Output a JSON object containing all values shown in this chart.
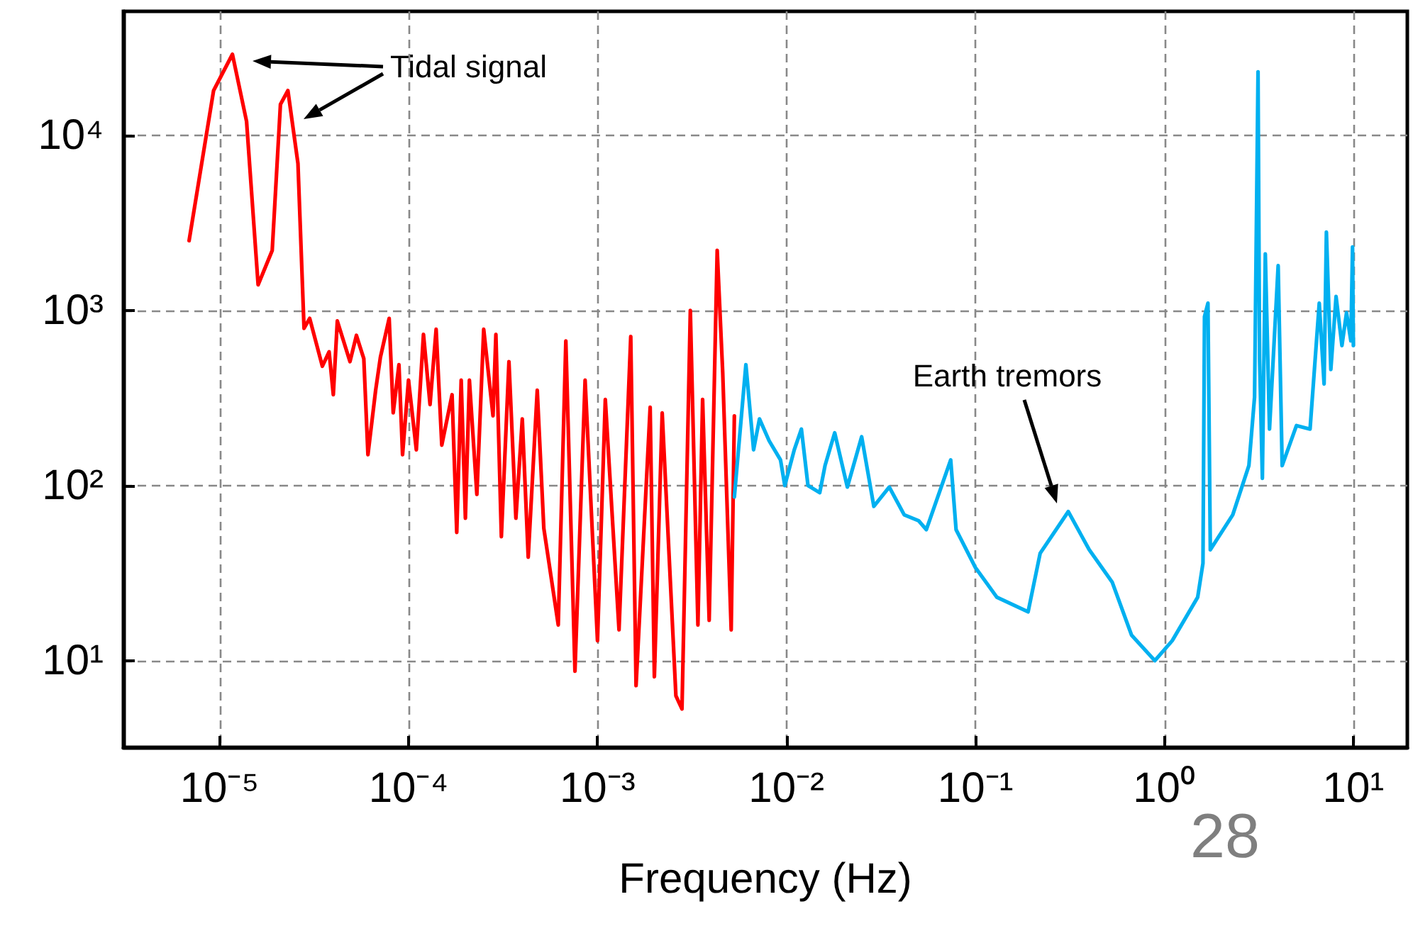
{
  "chart_data": {
    "type": "line",
    "xlabel": "Frequency (Hz)",
    "log": "xy",
    "grid": true,
    "marker": "none",
    "line_style": "solid",
    "xlim": [
      3.1e-06,
      19.3
    ],
    "ylim": [
      3.2,
      51000
    ],
    "xticks": [
      {
        "value": 1e-05,
        "label": "10⁻⁵"
      },
      {
        "value": 0.0001,
        "label": "10⁻⁴"
      },
      {
        "value": 0.001,
        "label": "10⁻³"
      },
      {
        "value": 0.01,
        "label": "10⁻²"
      },
      {
        "value": 0.1,
        "label": "10⁻¹"
      },
      {
        "value": 1,
        "label": "10⁰"
      },
      {
        "value": 10,
        "label": "10¹"
      }
    ],
    "yticks": [
      {
        "value": 10,
        "label": "10¹"
      },
      {
        "value": 100,
        "label": "10²"
      },
      {
        "value": 1000,
        "label": "10³"
      },
      {
        "value": 10000,
        "label": "10⁴"
      }
    ],
    "series": [
      {
        "color": "#ff0000",
        "x": [
          6.9e-06,
          9.3e-06,
          1.17e-05,
          1.39e-05,
          1.6e-05,
          1.9e-05,
          2.1e-05,
          2.3e-05,
          2.6e-05,
          2.8e-05,
          3e-05,
          3.5e-05,
          3.8e-05,
          4e-05,
          4.2e-05,
          4.9e-05,
          5.3e-05,
          5.8e-05,
          6.1e-05,
          6.7e-05,
          7.1e-05,
          7.9e-05,
          8.3e-05,
          8.9e-05,
          9.3e-05,
          0.0001,
          0.00011,
          0.00012,
          0.00013,
          0.00014,
          0.00015,
          0.00017,
          0.00018,
          0.00019,
          0.0002,
          0.00021,
          0.00023,
          0.00025,
          0.00028,
          0.00029,
          0.00031,
          0.00034,
          0.00037,
          0.0004,
          0.00043,
          0.00048,
          0.00052,
          0.00062,
          0.00068,
          0.00076,
          0.00086,
          0.001,
          0.0011,
          0.0013,
          0.0015,
          0.0016,
          0.0019,
          0.002,
          0.0022,
          0.0026,
          0.0028,
          0.0031,
          0.0034,
          0.0036,
          0.0039,
          0.0043,
          0.0046,
          0.0051,
          0.0053
        ],
        "values": [
          2500,
          18000,
          29000,
          12000,
          1400,
          2200,
          15000,
          18000,
          6900,
          790,
          900,
          480,
          580,
          330,
          870,
          510,
          720,
          530,
          150,
          350,
          540,
          900,
          260,
          490,
          150,
          400,
          160,
          730,
          290,
          780,
          170,
          330,
          54,
          400,
          65,
          400,
          89,
          780,
          250,
          730,
          51,
          510,
          65,
          240,
          39,
          350,
          57,
          16,
          670,
          8.7,
          400,
          13,
          310,
          15,
          710,
          7.2,
          280,
          8.1,
          260,
          6.3,
          5.3,
          1000,
          16,
          310,
          17,
          2200,
          440,
          15,
          250
        ]
      },
      {
        "color": "#00b0f0",
        "x": [
          0.0053,
          0.0061,
          0.0067,
          0.0072,
          0.0081,
          0.0093,
          0.0098,
          0.011,
          0.012,
          0.013,
          0.015,
          0.016,
          0.018,
          0.021,
          0.025,
          0.029,
          0.035,
          0.042,
          0.05,
          0.055,
          0.074,
          0.079,
          0.1,
          0.13,
          0.19,
          0.22,
          0.31,
          0.4,
          0.53,
          0.67,
          0.89,
          1.1,
          1.5,
          1.6,
          1.63,
          1.7,
          1.75,
          2.3,
          2.8,
          3.0,
          3.13,
          3.19,
          3.3,
          3.42,
          3.6,
          4.0,
          4.2,
          5.0,
          5.9,
          6.6,
          7.0,
          7.2,
          7.6,
          8.1,
          8.7,
          9.2,
          9.7,
          9.9,
          10
        ],
        "values": [
          86,
          490,
          160,
          240,
          180,
          140,
          100,
          160,
          210,
          100,
          91,
          130,
          200,
          98,
          190,
          76,
          98,
          68,
          63,
          56,
          140,
          56,
          34,
          23,
          19,
          41,
          71,
          43,
          28,
          14,
          10,
          13,
          23,
          36,
          920,
          1100,
          43,
          68,
          130,
          320,
          23000,
          530,
          110,
          2100,
          210,
          1800,
          130,
          220,
          210,
          1100,
          380,
          2800,
          460,
          1200,
          630,
          970,
          670,
          2300,
          630
        ]
      }
    ],
    "annotations": [
      "Tidal signal",
      "Earth tremors",
      "28"
    ]
  }
}
